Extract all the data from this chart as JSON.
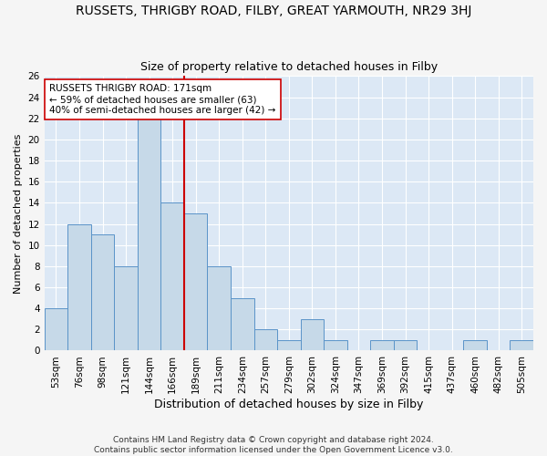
{
  "title": "RUSSETS, THRIGBY ROAD, FILBY, GREAT YARMOUTH, NR29 3HJ",
  "subtitle": "Size of property relative to detached houses in Filby",
  "xlabel": "Distribution of detached houses by size in Filby",
  "ylabel": "Number of detached properties",
  "categories": [
    "53sqm",
    "76sqm",
    "98sqm",
    "121sqm",
    "144sqm",
    "166sqm",
    "189sqm",
    "211sqm",
    "234sqm",
    "257sqm",
    "279sqm",
    "302sqm",
    "324sqm",
    "347sqm",
    "369sqm",
    "392sqm",
    "415sqm",
    "437sqm",
    "460sqm",
    "482sqm",
    "505sqm"
  ],
  "values": [
    4,
    12,
    11,
    8,
    22,
    14,
    13,
    8,
    5,
    2,
    1,
    3,
    1,
    0,
    1,
    1,
    0,
    0,
    1,
    0,
    1
  ],
  "bar_color": "#c6d9e8",
  "bar_edge_color": "#5a93c8",
  "vline_x_idx": 5.5,
  "vline_color": "#cc0000",
  "annotation_line1": "RUSSETS THRIGBY ROAD: 171sqm",
  "annotation_line2": "← 59% of detached houses are smaller (63)",
  "annotation_line3": "40% of semi-detached houses are larger (42) →",
  "annotation_box_color": "#ffffff",
  "annotation_box_edge_color": "#cc0000",
  "ylim": [
    0,
    26
  ],
  "yticks": [
    0,
    2,
    4,
    6,
    8,
    10,
    12,
    14,
    16,
    18,
    20,
    22,
    24,
    26
  ],
  "plot_bg_color": "#dce8f5",
  "fig_bg_color": "#f5f5f5",
  "grid_color": "#ffffff",
  "footer": "Contains HM Land Registry data © Crown copyright and database right 2024.\nContains public sector information licensed under the Open Government Licence v3.0.",
  "title_fontsize": 10,
  "subtitle_fontsize": 9,
  "xlabel_fontsize": 9,
  "ylabel_fontsize": 8,
  "tick_fontsize": 7.5,
  "annotation_fontsize": 7.5,
  "footer_fontsize": 6.5
}
